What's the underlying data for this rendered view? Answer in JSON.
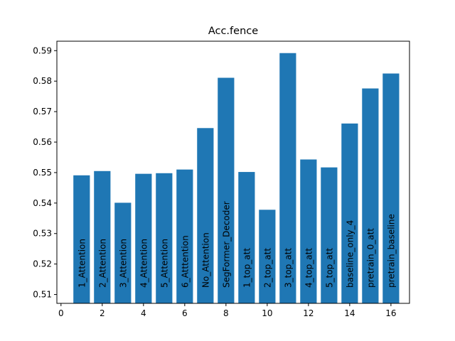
{
  "chart_data": {
    "type": "bar",
    "title": "Acc.fence",
    "xlabel": "",
    "ylabel": "",
    "x": [
      1,
      2,
      3,
      4,
      5,
      6,
      7,
      8,
      9,
      10,
      11,
      12,
      13,
      14,
      15,
      16
    ],
    "categories": [
      "1_Attention",
      "2_Attention",
      "3_Attention",
      "4_Attention",
      "5_Attention",
      "6_Atttention",
      "No_Attention",
      "SegFormer_Decoder",
      "1_top_att",
      "2_top_att",
      "3_top_att",
      "4_top_att",
      "5_top_att",
      "baseline_only_4",
      "pretrain_0_att",
      "pretrain_baseline"
    ],
    "values": [
      0.5491,
      0.5505,
      0.5401,
      0.5496,
      0.5498,
      0.551,
      0.5646,
      0.5811,
      0.5502,
      0.5378,
      0.5892,
      0.5543,
      0.5517,
      0.5661,
      0.5776,
      0.5825
    ],
    "xlim": [
      -0.2,
      16.9
    ],
    "ylim": [
      0.5071,
      0.5931
    ],
    "xticks": [
      0,
      2,
      4,
      6,
      8,
      10,
      12,
      14,
      16
    ],
    "yticks": [
      0.51,
      0.52,
      0.53,
      0.54,
      0.55,
      0.56,
      0.57,
      0.58,
      0.59
    ],
    "ytick_labels": [
      "0.51",
      "0.52",
      "0.53",
      "0.54",
      "0.55",
      "0.56",
      "0.57",
      "0.58",
      "0.59"
    ],
    "bar_color": "#1f77b4",
    "grid": false,
    "labels_inside_bars_rotated": true
  }
}
